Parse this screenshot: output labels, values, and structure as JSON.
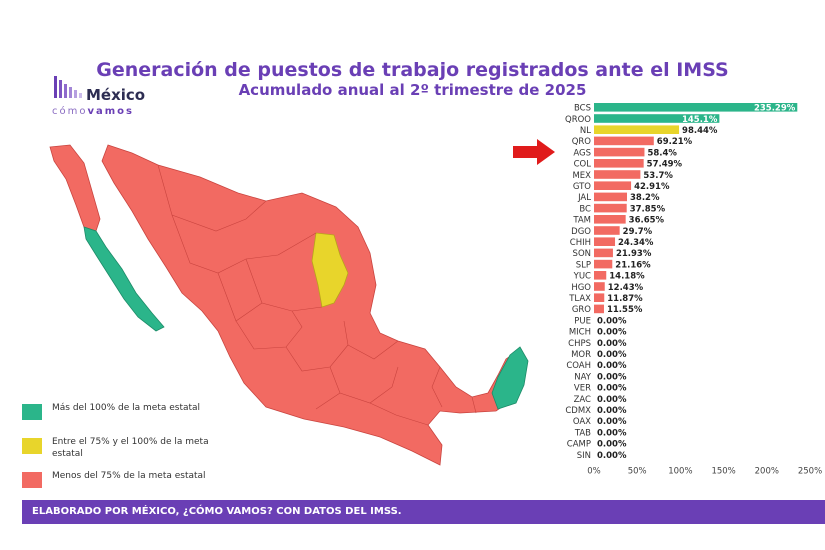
{
  "title": "Generación de puestos de trabajo registrados ante el IMSS",
  "subtitle": "Acumulado anual al 2º trimestre de 2025",
  "logo": {
    "brand": "México",
    "sub_light": "cómo",
    "sub_bold": "vamos"
  },
  "legend": [
    {
      "label": "Más del 100% de la meta estatal",
      "color": "#2bb58a"
    },
    {
      "label": "Entre el 75% y el 100% de la meta estatal",
      "color": "#e8d52b"
    },
    {
      "label": "Menos del 75% de la meta estatal",
      "color": "#f26a62"
    }
  ],
  "footer": "ELABORADO POR MÉXICO, ¿CÓMO VAMOS? CON DATOS DEL IMSS.",
  "colors": {
    "green": "#2bb58a",
    "yellow": "#e8d52b",
    "red": "#f26a62",
    "purple": "#6a3fb5",
    "arrow": "#e01b1b"
  },
  "chart_data": {
    "type": "bar",
    "orientation": "horizontal",
    "categories": [
      "BCS",
      "QROO",
      "NL",
      "QRO",
      "AGS",
      "COL",
      "MEX",
      "GTO",
      "JAL",
      "BC",
      "TAM",
      "DGO",
      "CHIH",
      "SON",
      "SLP",
      "YUC",
      "HGO",
      "TLAX",
      "GRO",
      "PUE",
      "MICH",
      "CHPS",
      "MOR",
      "COAH",
      "NAY",
      "VER",
      "ZAC",
      "CDMX",
      "OAX",
      "TAB",
      "CAMP",
      "SIN"
    ],
    "values": [
      235.29,
      145.1,
      98.44,
      69.21,
      58.4,
      57.49,
      53.7,
      42.91,
      38.2,
      37.85,
      36.65,
      29.7,
      24.34,
      21.93,
      21.16,
      14.18,
      12.43,
      11.87,
      11.55,
      0,
      0,
      0,
      0,
      0,
      0,
      0,
      0,
      0,
      0,
      0,
      0,
      0
    ],
    "labels": [
      "235.29%",
      "145.1%",
      "98.44%",
      "69.21%",
      "58.4%",
      "57.49%",
      "53.7%",
      "42.91%",
      "38.2%",
      "37.85%",
      "36.65%",
      "29.7%",
      "24.34%",
      "21.93%",
      "21.16%",
      "14.18%",
      "12.43%",
      "11.87%",
      "11.55%",
      "0.00%",
      "0.00%",
      "0.00%",
      "0.00%",
      "0.00%",
      "0.00%",
      "0.00%",
      "0.00%",
      "0.00%",
      "0.00%",
      "0.00%",
      "0.00%",
      "0.00%"
    ],
    "xticks": [
      "0%",
      "50%",
      "100%",
      "150%",
      "200%",
      "250%"
    ],
    "xlim": [
      0,
      250
    ],
    "highlighted_category": "QRO"
  }
}
